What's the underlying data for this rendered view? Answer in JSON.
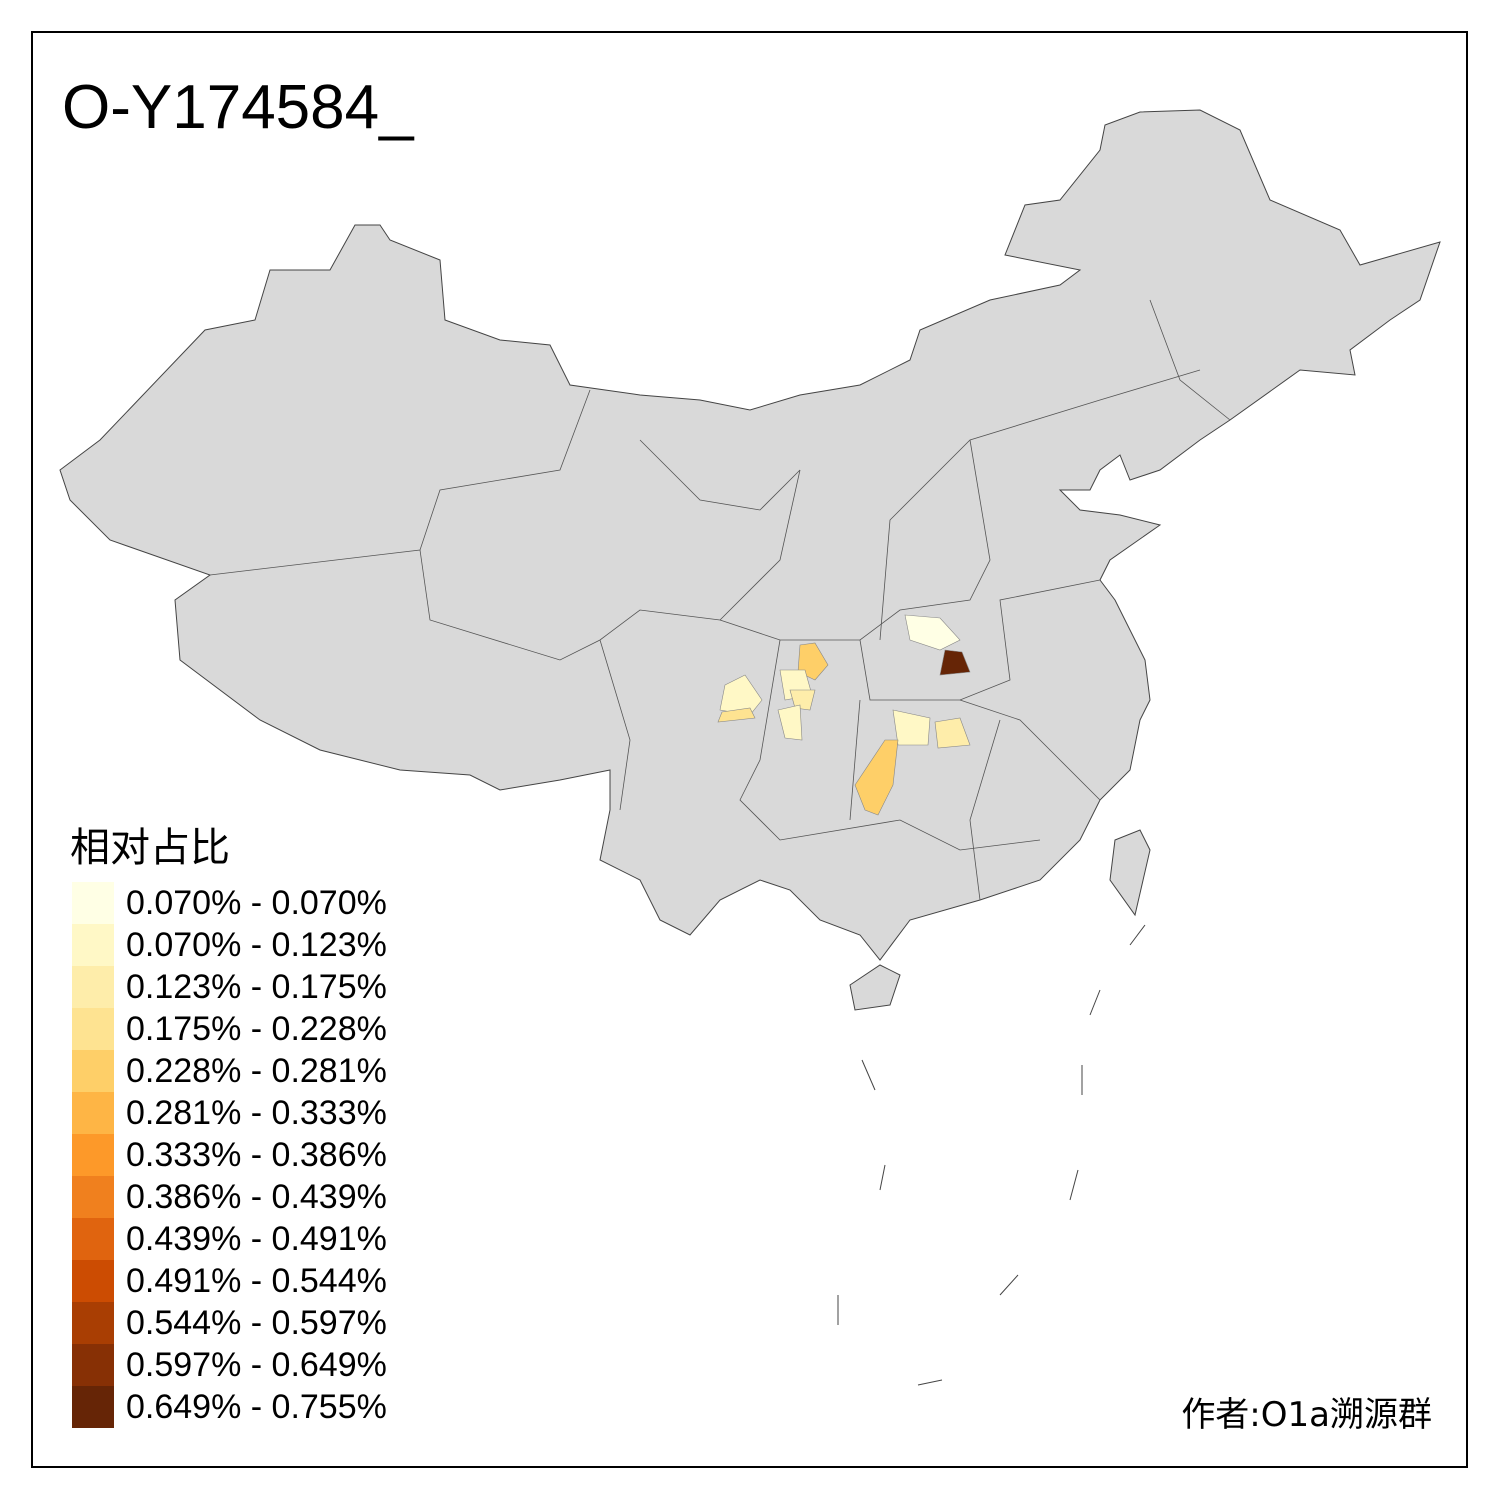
{
  "title": "O-Y174584_",
  "legend": {
    "title": "相对占比",
    "items": [
      {
        "label": "0.070% - 0.070%",
        "color": "#FFFFE5"
      },
      {
        "label": "0.070% - 0.123%",
        "color": "#FFF8C6"
      },
      {
        "label": "0.123% - 0.175%",
        "color": "#FEEDAA"
      },
      {
        "label": "0.175% - 0.228%",
        "color": "#FEE391"
      },
      {
        "label": "0.228% - 0.281%",
        "color": "#FECF68"
      },
      {
        "label": "0.281% - 0.333%",
        "color": "#FEB545"
      },
      {
        "label": "0.333% - 0.386%",
        "color": "#FD9929"
      },
      {
        "label": "0.386% - 0.439%",
        "color": "#F0801E"
      },
      {
        "label": "0.439% - 0.491%",
        "color": "#E0640F"
      },
      {
        "label": "0.491% - 0.544%",
        "color": "#CC4C02"
      },
      {
        "label": "0.544% - 0.597%",
        "color": "#A93E03"
      },
      {
        "label": "0.597% - 0.649%",
        "color": "#873005"
      },
      {
        "label": "0.649% - 0.755%",
        "color": "#662506"
      }
    ]
  },
  "author": "作者:O1a溯源群",
  "colors": {
    "base_fill": "#D9D9D9",
    "border": "#444444"
  }
}
